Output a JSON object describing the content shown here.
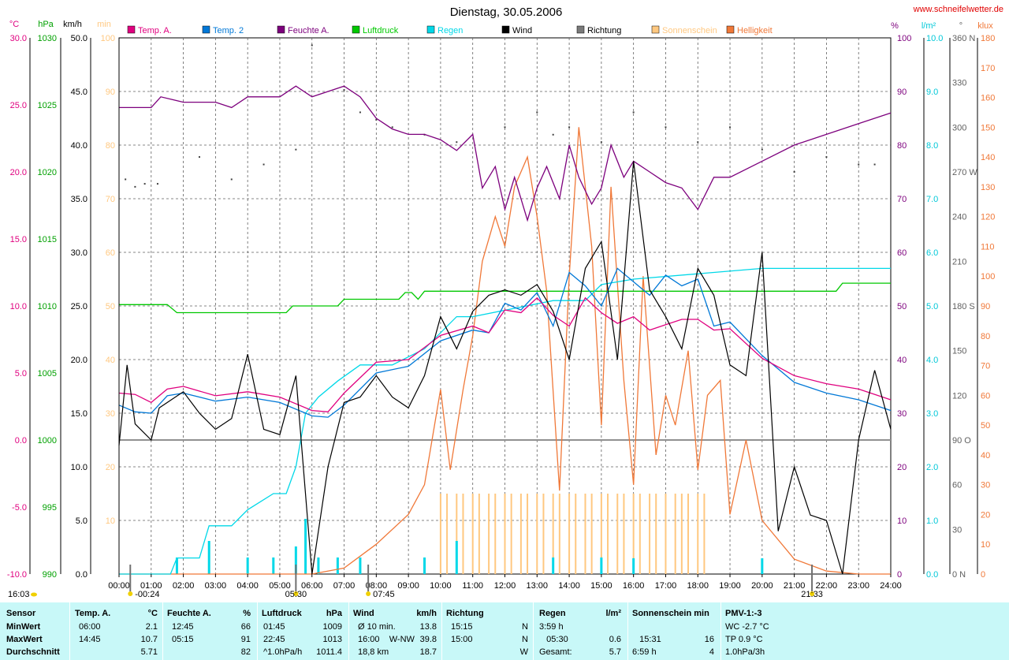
{
  "header": {
    "title": "Dienstag, 30.05.2006",
    "site": "www.schneifelwetter.de"
  },
  "axes": {
    "left_units": [
      "°C",
      "hPa",
      "km/h",
      "min"
    ],
    "right_units": [
      "%",
      "l/m²",
      "°",
      "klux"
    ],
    "temp_ticks": [
      "30.0",
      "25.0",
      "20.0",
      "15.0",
      "10.0",
      "5.0",
      "0.0",
      "-5.0",
      "-10.0"
    ],
    "hpa_ticks": [
      "1030",
      "1025",
      "1020",
      "1015",
      "1010",
      "1005",
      "1000",
      "995",
      "990"
    ],
    "kmh_ticks": [
      "50.0",
      "45.0",
      "40.0",
      "35.0",
      "30.0",
      "25.0",
      "20.0",
      "15.0",
      "10.0",
      "5.0",
      "0.0"
    ],
    "min_ticks": [
      "100",
      "90",
      "80",
      "70",
      "60",
      "50",
      "40",
      "30",
      "20",
      "10"
    ],
    "pct_ticks": [
      "100",
      "90",
      "80",
      "70",
      "60",
      "50",
      "40",
      "30",
      "20",
      "10",
      "0"
    ],
    "rain_ticks": [
      "10.0",
      "9.0",
      "8.0",
      "7.0",
      "6.0",
      "5.0",
      "4.0",
      "3.0",
      "2.0",
      "1.0",
      "0.0"
    ],
    "deg_ticks": [
      "360 N",
      "330",
      "300",
      "270 W",
      "240",
      "210",
      "180 S",
      "150",
      "120",
      "90 O",
      "60",
      "30",
      "0   N"
    ],
    "klux_ticks": [
      "180",
      "170",
      "160",
      "150",
      "140",
      "130",
      "120",
      "110",
      "100",
      "90",
      "80",
      "70",
      "60",
      "50",
      "40",
      "30",
      "20",
      "10",
      "0"
    ],
    "x_ticks": [
      "00:00",
      "01:00",
      "02:00",
      "03:00",
      "04:00",
      "05:00",
      "06:00",
      "07:00",
      "08:00",
      "09:00",
      "10:00",
      "11:00",
      "12:00",
      "13:00",
      "14:00",
      "15:00",
      "16:00",
      "17:00",
      "18:00",
      "19:00",
      "20:00",
      "21:00",
      "22:00",
      "23:00",
      "24:00"
    ],
    "sun_markers": [
      "-00:24",
      "05:30",
      "07:45",
      "21:33"
    ],
    "update_time": "16:03"
  },
  "legend": [
    {
      "name": "Temp. A.",
      "color": "#e0007f"
    },
    {
      "name": "Temp. 2",
      "color": "#0078d7"
    },
    {
      "name": "Feuchte A.",
      "color": "#7d007d"
    },
    {
      "name": "Luftdruck",
      "color": "#00c800"
    },
    {
      "name": "Regen",
      "color": "#00d8e8"
    },
    {
      "name": "Wind",
      "color": "#000000"
    },
    {
      "name": "Richtung",
      "color": "#7a7a7a"
    },
    {
      "name": "Sonnenschein",
      "color": "#ffc880"
    },
    {
      "name": "Helligkeit",
      "color": "#f07838"
    }
  ],
  "colors": {
    "temp_axis": "#e0007f",
    "hpa_axis": "#00a000",
    "min_axis": "#ffc880",
    "pct_axis": "#7d007d",
    "rain_axis": "#00c8d8",
    "klux_axis": "#f07838",
    "panel": "#c8f8f8"
  },
  "chart_data": {
    "type": "line",
    "title": "Dienstag, 30.05.2006",
    "x_range_hours": [
      0,
      24
    ],
    "series": [
      {
        "name": "Temp. A.",
        "unit": "°C",
        "x": [
          0,
          0.5,
          1,
          1.5,
          2,
          3,
          4,
          5,
          6,
          6.5,
          7,
          8,
          9,
          10,
          11,
          11.5,
          12,
          12.5,
          13,
          13.5,
          14,
          14.5,
          15,
          15.5,
          16,
          16.5,
          17,
          17.5,
          18,
          18.5,
          19,
          20,
          21,
          22,
          23,
          24
        ],
        "y": [
          3.5,
          3.4,
          2.8,
          3.8,
          4.0,
          3.3,
          3.6,
          3.2,
          2.2,
          2.1,
          3.5,
          5.8,
          6.0,
          7.8,
          8.5,
          8.0,
          9.7,
          9.5,
          10.6,
          9.3,
          8.5,
          10.6,
          9.5,
          8.7,
          9.2,
          8.2,
          8.6,
          9.0,
          9.0,
          8.2,
          8.3,
          6.1,
          4.8,
          4.2,
          3.8,
          3.0
        ]
      },
      {
        "name": "Temp. 2",
        "unit": "°C",
        "x": [
          0,
          0.5,
          1,
          1.5,
          2,
          3,
          4,
          5,
          6,
          6.5,
          7,
          8,
          9,
          10,
          11,
          11.5,
          12,
          12.5,
          13,
          13.5,
          14,
          14.5,
          15,
          15.5,
          16,
          16.5,
          17,
          17.5,
          18,
          18.5,
          19,
          20,
          21,
          22,
          23,
          24
        ],
        "y": [
          2.6,
          2.1,
          2.0,
          3.3,
          3.5,
          2.9,
          3.2,
          2.8,
          1.8,
          1.7,
          2.6,
          5.0,
          5.5,
          7.4,
          8.2,
          8.0,
          10.2,
          9.7,
          11.0,
          8.5,
          12.5,
          11.5,
          10.0,
          12.8,
          11.8,
          10.8,
          12.3,
          11.5,
          12.0,
          8.5,
          8.8,
          6.3,
          4.3,
          3.5,
          3.0,
          2.2
        ]
      },
      {
        "name": "Feuchte A.",
        "unit": "%",
        "x": [
          0,
          1,
          1.3,
          2,
          3,
          3.5,
          4,
          5,
          5.5,
          6,
          7,
          7.5,
          8,
          8.5,
          9,
          9.5,
          10,
          10.5,
          11,
          11.3,
          11.7,
          12,
          12.3,
          12.7,
          13,
          13.3,
          13.7,
          14,
          14.3,
          14.7,
          15,
          15.3,
          15.7,
          16,
          16.5,
          17,
          17.5,
          18,
          18.5,
          19,
          20,
          21,
          22,
          23,
          24
        ],
        "y": [
          87,
          87,
          89,
          88,
          88,
          87,
          89,
          89,
          91,
          89,
          91,
          89,
          85,
          83,
          82,
          82,
          81,
          79,
          82,
          72,
          76,
          68,
          74,
          66,
          72,
          76,
          70,
          80,
          74,
          69,
          72,
          80,
          74,
          77,
          75,
          73,
          72,
          68,
          74,
          74,
          77,
          80,
          82,
          84,
          86
        ]
      },
      {
        "name": "Luftdruck",
        "unit": "hPa",
        "x": [
          0,
          1.5,
          1.8,
          5.2,
          5.4,
          6.8,
          7.0,
          8.7,
          8.9,
          9.1,
          9.3,
          9.5,
          11.5,
          12.5,
          15.0,
          22.3,
          22.5,
          24
        ],
        "y": [
          1010.1,
          1010.1,
          1009.5,
          1009.5,
          1010.0,
          1010.0,
          1010.5,
          1010.5,
          1011.0,
          1011.0,
          1010.5,
          1011.1,
          1011.1,
          1011.1,
          1011.1,
          1011.1,
          1011.7,
          1011.7
        ]
      },
      {
        "name": "Regen",
        "unit": "l/m²",
        "x": [
          0,
          1.6,
          1.8,
          2.5,
          2.8,
          3.5,
          4.0,
          4.8,
          5.2,
          5.5,
          5.8,
          6.2,
          6.8,
          7.5,
          8.5,
          9.5,
          10.5,
          11.0,
          13.5,
          14.5,
          15.0,
          16,
          20,
          24
        ],
        "y": [
          0.0,
          0.0,
          0.3,
          0.3,
          0.9,
          0.9,
          1.2,
          1.5,
          1.5,
          2.0,
          3.0,
          3.3,
          3.6,
          3.9,
          3.9,
          4.2,
          4.8,
          4.8,
          5.1,
          5.1,
          5.4,
          5.5,
          5.7,
          5.7
        ]
      },
      {
        "name": "Wind",
        "unit": "km/h",
        "x": [
          0,
          0.25,
          0.5,
          1,
          1.25,
          2,
          2.5,
          3,
          3.5,
          4,
          4.5,
          5,
          5.5,
          6,
          6.5,
          7,
          7.5,
          8,
          8.5,
          9,
          9.5,
          10,
          10.5,
          11,
          11.5,
          12,
          12.5,
          13,
          13.5,
          14,
          14.5,
          15,
          15.5,
          16,
          16.5,
          17,
          17.5,
          18,
          18.5,
          19,
          19.5,
          20,
          20.5,
          21,
          21.5,
          22,
          22.5,
          23,
          23.5,
          24
        ],
        "y": [
          12.0,
          19.5,
          14.0,
          12.5,
          15.5,
          17.0,
          15.0,
          13.5,
          14.5,
          20.5,
          13.5,
          13.0,
          18.5,
          0.0,
          10.0,
          16.0,
          16.5,
          18.5,
          16.5,
          15.5,
          18.5,
          24.0,
          21.0,
          24.5,
          26.0,
          26.5,
          26.0,
          27.0,
          24.5,
          20.0,
          28.5,
          31.0,
          20.0,
          38.5,
          26.5,
          24.0,
          21.0,
          28.5,
          26.0,
          19.5,
          18.5,
          30.0,
          4.0,
          10.0,
          5.5,
          5.0,
          0.0,
          12.5,
          19.0,
          13.5
        ]
      },
      {
        "name": "Helligkeit",
        "unit": "klux",
        "x": [
          0,
          6,
          7,
          8,
          9,
          9.5,
          10,
          10.3,
          10.7,
          11,
          11.3,
          11.7,
          12,
          12.3,
          12.7,
          13,
          13.3,
          13.7,
          14,
          14.3,
          14.7,
          15,
          15.3,
          15.7,
          16,
          16.3,
          16.7,
          17,
          17.3,
          17.7,
          18,
          18.3,
          18.7,
          19,
          19.5,
          20,
          21,
          22,
          23,
          24
        ],
        "y": [
          0,
          0,
          2,
          10,
          20,
          30,
          62,
          35,
          62,
          80,
          105,
          120,
          110,
          130,
          140,
          120,
          95,
          28,
          100,
          150,
          110,
          50,
          130,
          65,
          30,
          100,
          40,
          60,
          50,
          75,
          35,
          60,
          65,
          20,
          45,
          18,
          5,
          1,
          0,
          0
        ]
      },
      {
        "name": "Richtung",
        "unit": "°",
        "x": [
          0.2,
          0.5,
          0.8,
          1.2,
          2.5,
          3.5,
          4.5,
          5.5,
          6,
          7,
          7.5,
          8,
          8.5,
          9.5,
          10.5,
          12,
          13,
          13.5,
          14,
          15,
          16,
          17,
          18,
          19,
          20,
          21,
          22,
          23,
          23.5
        ],
        "y": [
          265,
          260,
          262,
          262,
          280,
          265,
          275,
          285,
          355,
          325,
          310,
          305,
          300,
          295,
          290,
          300,
          310,
          295,
          300,
          290,
          310,
          300,
          290,
          300,
          285,
          270,
          280,
          275,
          275
        ]
      }
    ],
    "sunshine_bars_hours": [
      10.0,
      10.2,
      10.5,
      10.7,
      11.0,
      11.2,
      11.5,
      11.7,
      12.0,
      12.2,
      12.5,
      12.7,
      13.0,
      13.2,
      13.5,
      13.7,
      14.0,
      14.2,
      14.5,
      14.7,
      15.0,
      15.2,
      15.5,
      15.7,
      16.0,
      16.2,
      16.5,
      16.7,
      17.0,
      17.3,
      17.5,
      17.7,
      18.0,
      18.2
    ]
  },
  "summary": {
    "headers": {
      "sensor": "Sensor",
      "temp": "Temp. A.",
      "temp_unit": "°C",
      "hum": "Feuchte A.",
      "hum_unit": "%",
      "press": "Luftdruck",
      "press_unit": "hPa",
      "wind": "Wind",
      "wind_unit": "km/h",
      "dir": "Richtung",
      "rain": "Regen",
      "rain_unit": "l/m²",
      "sun": "Sonnenschein min",
      "pmv": "PMV-1:-3"
    },
    "rows": [
      {
        "label": "MinWert",
        "temp_time": "06:00",
        "temp_val": "2.1",
        "hum_time": "12:45",
        "hum_val": "66",
        "press_time": "01:45",
        "press_val": "1009",
        "wind_time": "Ø 10 min.",
        "wind_val": "13.8",
        "dir_time": "15:15",
        "dir_val": "N",
        "rain_time": "3:59 h",
        "rain_val": "",
        "sun_time": "",
        "sun_val": "",
        "pmv": "WC -2.7 °C"
      },
      {
        "label": "MaxWert",
        "temp_time": "14:45",
        "temp_val": "10.7",
        "hum_time": "05:15",
        "hum_val": "91",
        "press_time": "22:45",
        "press_val": "1013",
        "wind_time": "16:00    W-NW",
        "wind_val": "39.8",
        "dir_time": "15:00",
        "dir_val": "N",
        "rain_time": "   05:30",
        "rain_val": "0.6",
        "sun_time": "   15:31",
        "sun_val": "16",
        "pmv": "TP 0.9 °C"
      },
      {
        "label": "Durchschnitt",
        "temp_time": "",
        "temp_val": "5.71",
        "hum_time": "",
        "hum_val": "82",
        "press_time": "^1.0hPa/h",
        "press_val": "1011.4",
        "wind_time": "18,8 km",
        "wind_val": "18.7",
        "dir_time": "",
        "dir_val": "W",
        "rain_time": "Gesamt:",
        "rain_val": "5.7",
        "sun_time": "6:59 h",
        "sun_val": "4",
        "pmv": "1.0hPa/3h"
      }
    ]
  }
}
